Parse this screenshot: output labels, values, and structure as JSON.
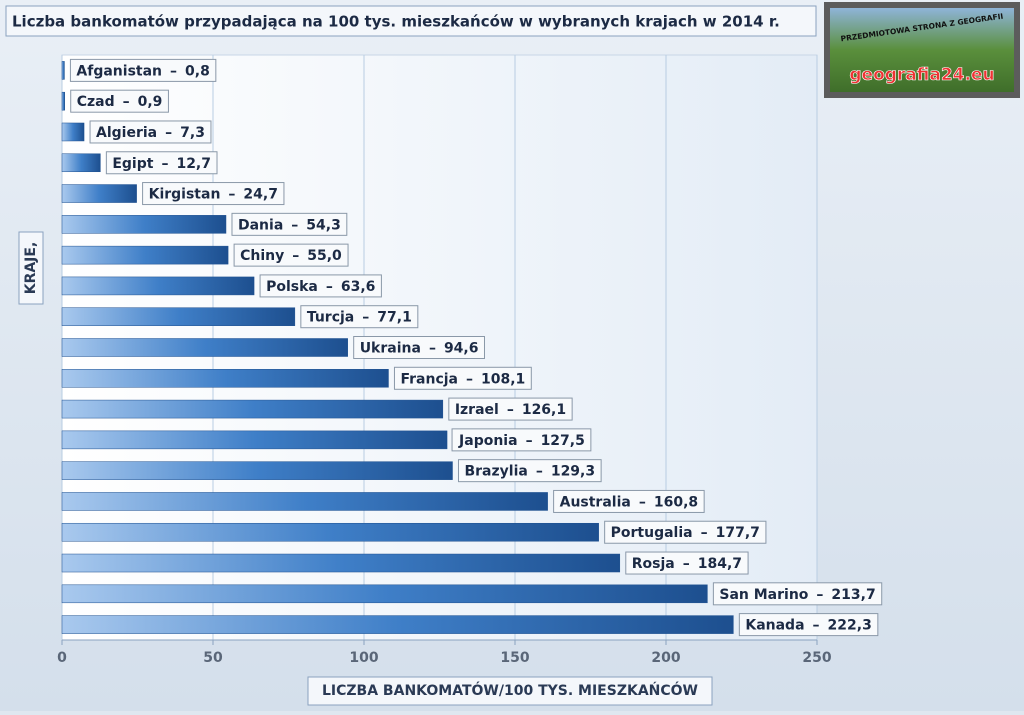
{
  "chart_data": {
    "type": "bar",
    "orientation": "horizontal",
    "title": "Liczba bankomatów przypadająca na 100 tys. mieszkańców w wybranych krajach w 2014 r.",
    "xlabel": "LICZBA BANKOMATÓW/100 TYS. MIESZKAŃCÓW",
    "ylabel": "KRAJE,",
    "categories": [
      "Afganistan",
      "Czad",
      "Algieria",
      "Egipt",
      "Kirgistan",
      "Dania",
      "Chiny",
      "Polska",
      "Turcja",
      "Ukraina",
      "Francja",
      "Izrael",
      "Japonia",
      "Brazylia",
      "Australia",
      "Portugalia",
      "Rosja",
      "San Marino",
      "Kanada"
    ],
    "values": [
      0.8,
      0.9,
      7.3,
      12.7,
      24.7,
      54.3,
      55.0,
      63.6,
      77.1,
      94.6,
      108.1,
      126.1,
      127.5,
      129.3,
      160.8,
      177.7,
      184.7,
      213.7,
      222.3
    ],
    "value_labels": [
      "0,8",
      "0,9",
      "7,3",
      "12,7",
      "24,7",
      "54,3",
      "55,0",
      "63,6",
      "77,1",
      "94,6",
      "108,1",
      "126,1",
      "127,5",
      "129,3",
      "160,8",
      "177,7",
      "184,7",
      "213,7",
      "222,3"
    ],
    "separator": "–",
    "xlim": [
      0,
      250
    ],
    "xticks": [
      0,
      50,
      100,
      150,
      200,
      250
    ],
    "color": "#2f6db5",
    "grid": true
  },
  "logo": {
    "line1": "PRZEDMIOTOWA STRONA Z GEOGRAFII",
    "line2": "geografia24.eu"
  }
}
